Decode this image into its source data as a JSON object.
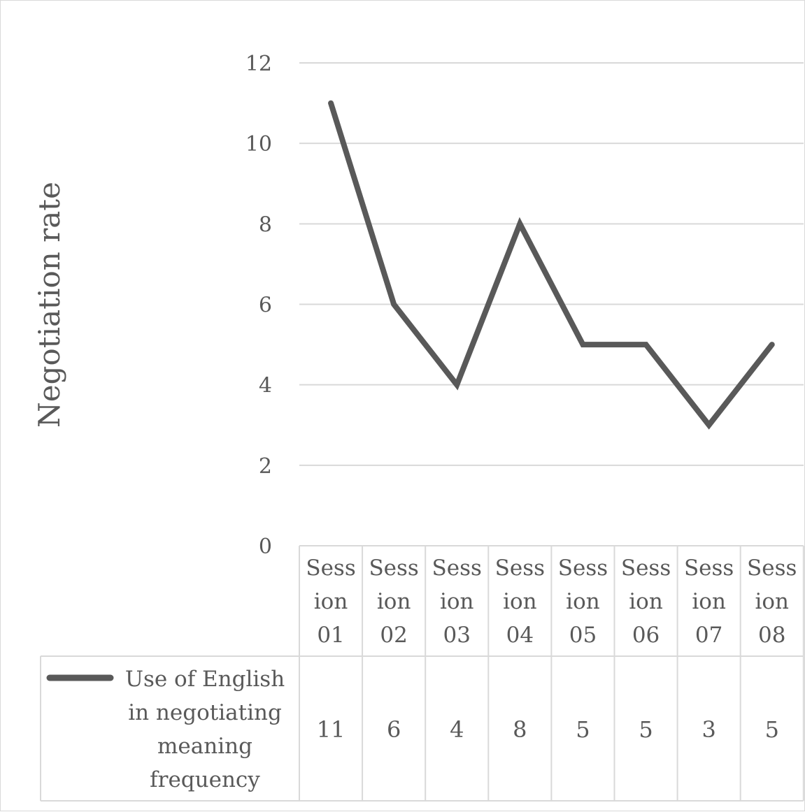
{
  "chart_data": {
    "type": "line",
    "title": "",
    "xlabel": "",
    "ylabel": "Negotiation rate",
    "ylim": [
      0,
      12
    ],
    "yticks": [
      0,
      2,
      4,
      6,
      8,
      10,
      12
    ],
    "categories": [
      [
        "Sess",
        "ion",
        "01"
      ],
      [
        "Sess",
        "ion",
        "02"
      ],
      [
        "Sess",
        "ion",
        "03"
      ],
      [
        "Sess",
        "ion",
        "04"
      ],
      [
        "Sess",
        "ion",
        "05"
      ],
      [
        "Sess",
        "ion",
        "06"
      ],
      [
        "Sess",
        "ion",
        "07"
      ],
      [
        "Sess",
        "ion",
        "08"
      ]
    ],
    "series": [
      {
        "name": "Use of English in negotiating meaning frequency",
        "name_lines": [
          "Use of English",
          "in negotiating",
          "meaning",
          "frequency"
        ],
        "values": [
          11,
          6,
          4,
          8,
          5,
          5,
          3,
          5
        ],
        "color": "#595959"
      }
    ],
    "grid": true,
    "legend": "data-table-left"
  }
}
